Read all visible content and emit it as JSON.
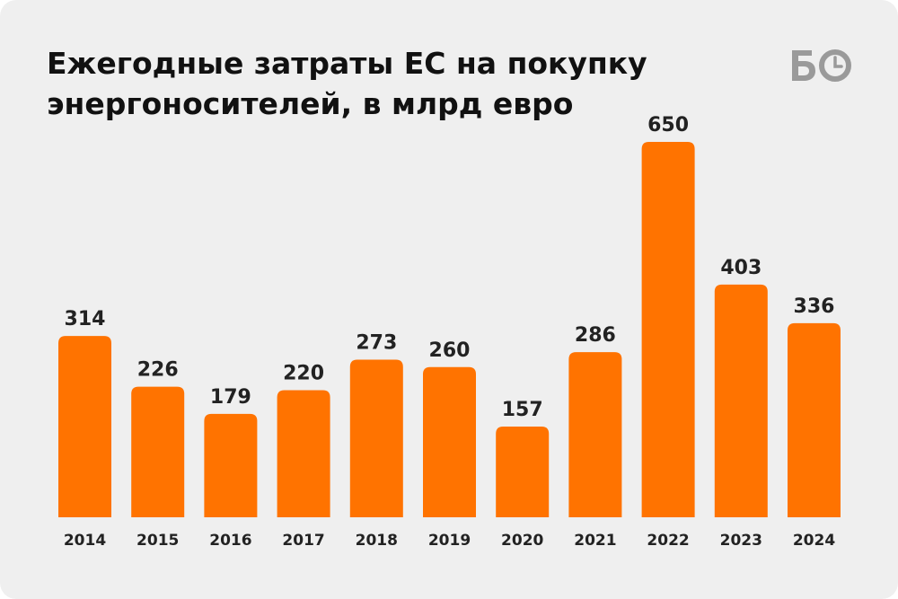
{
  "logo_text": "БО",
  "colors": {
    "bar": "#ff7300",
    "background": "#efefef",
    "text": "#111111",
    "logo": "#9a9a9a"
  },
  "chart_data": {
    "type": "bar",
    "title": "Ежегодные затраты ЕС на покупку энергоносителей, в млрд евро",
    "categories": [
      "2014",
      "2015",
      "2016",
      "2017",
      "2018",
      "2019",
      "2020",
      "2021",
      "2022",
      "2023",
      "2024"
    ],
    "values": [
      314,
      226,
      179,
      220,
      273,
      260,
      157,
      286,
      650,
      403,
      336
    ],
    "xlabel": "",
    "ylabel": "",
    "ylim": [
      0,
      650
    ],
    "grid": false,
    "legend": "none",
    "data_labels": true
  }
}
